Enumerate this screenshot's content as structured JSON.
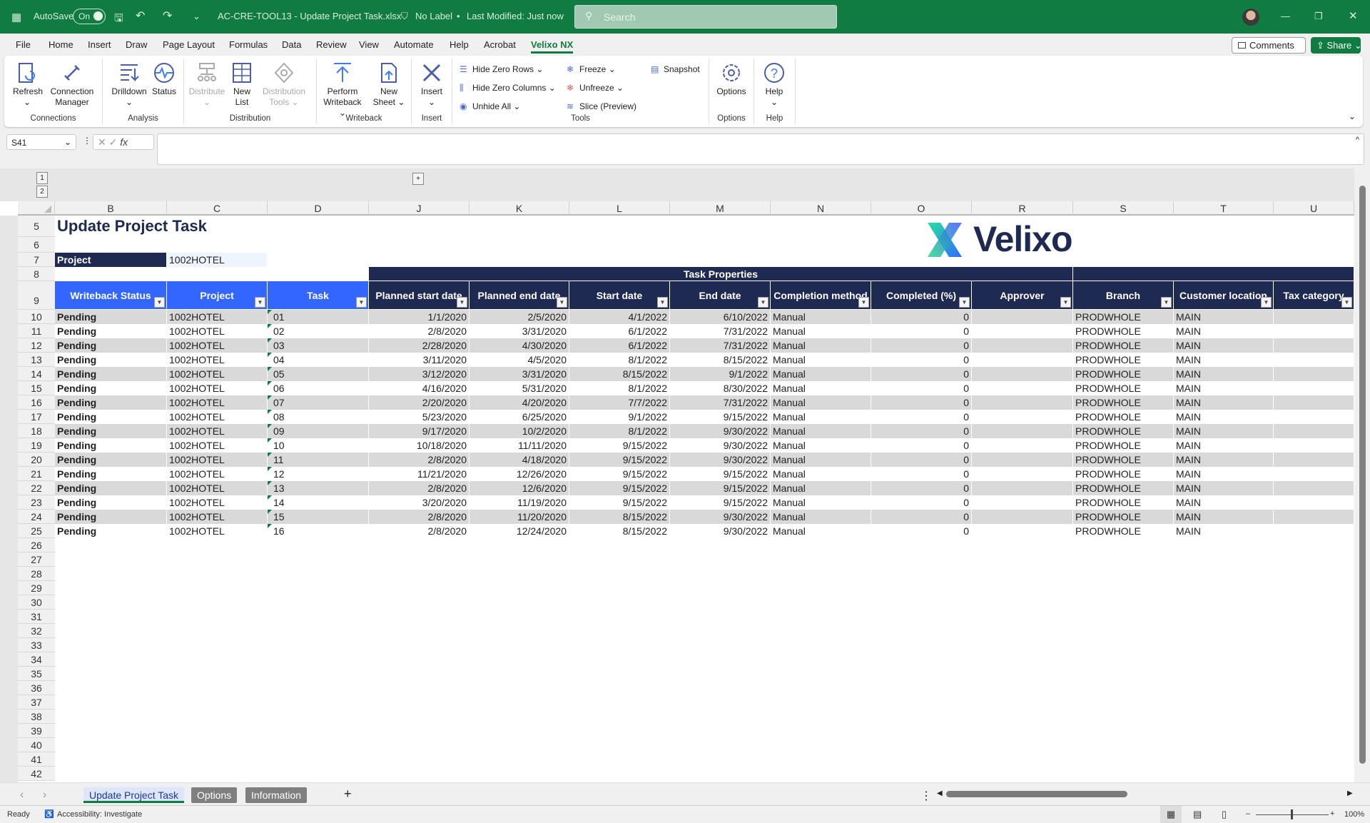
{
  "titlebar": {
    "autosave_label": "AutoSave",
    "autosave_state": "On",
    "filename": "AC-CRE-TOOL13 - Update Project Task.xlsx",
    "label_status": "No Label",
    "modified": "Last Modified: Just now",
    "search_placeholder": "Search"
  },
  "menu": {
    "tabs": [
      "File",
      "Home",
      "Insert",
      "Draw",
      "Page Layout",
      "Formulas",
      "Data",
      "Review",
      "View",
      "Automate",
      "Help",
      "Acrobat",
      "Velixo NX"
    ],
    "active": "Velixo NX",
    "comments": "Comments",
    "share": "Share"
  },
  "ribbon": {
    "groups": [
      "Connections",
      "Analysis",
      "Distribution",
      "Writeback",
      "Insert",
      "Tools",
      "Options",
      "Help"
    ],
    "refresh": "Refresh",
    "connection_manager": "Connection Manager",
    "drilldown": "Drilldown",
    "status": "Status",
    "distribute": "Distribute",
    "new_list": "New List",
    "distribution_tools": "Distribution Tools",
    "perform_writeback": "Perform Writeback",
    "new_sheet": "New Sheet",
    "insert": "Insert",
    "hide_zero_rows": "Hide Zero Rows",
    "hide_zero_columns": "Hide Zero Columns",
    "unhide_all": "Unhide All",
    "freeze": "Freeze",
    "unfreeze": "Unfreeze",
    "slice": "Slice (Preview)",
    "snapshot": "Snapshot",
    "options": "Options",
    "help": "Help"
  },
  "formula_bar": {
    "name_box": "S41",
    "value": ""
  },
  "sheet": {
    "column_letters": [
      "B",
      "C",
      "D",
      "J",
      "K",
      "L",
      "M",
      "N",
      "O",
      "R",
      "S",
      "T",
      "U"
    ],
    "row_numbers": [
      5,
      6,
      7,
      8,
      9,
      10,
      11,
      12,
      13,
      14,
      15,
      16,
      17,
      18,
      19,
      20,
      21,
      22,
      23,
      24,
      25,
      26,
      27,
      28,
      29,
      30,
      31,
      32,
      33,
      34,
      35,
      36,
      37,
      38,
      39,
      40,
      41,
      42
    ],
    "title": "Update Project Task",
    "project_label": "Project",
    "project_value": "1002HOTEL",
    "logo_text": "Velixo",
    "group_header": "Task Properties",
    "headers": [
      "Writeback Status",
      "Project",
      "Task",
      "Planned start date",
      "Planned end date",
      "Start date",
      "End date",
      "Completion method",
      "Completed (%)",
      "Approver",
      "Branch",
      "Customer location",
      "Tax category"
    ],
    "rows": [
      [
        "Pending",
        "1002HOTEL",
        "01",
        "1/1/2020",
        "2/5/2020",
        "4/1/2022",
        "6/10/2022",
        "Manual",
        "0",
        "",
        "PRODWHOLE",
        "MAIN",
        ""
      ],
      [
        "Pending",
        "1002HOTEL",
        "02",
        "2/8/2020",
        "3/31/2020",
        "6/1/2022",
        "7/31/2022",
        "Manual",
        "0",
        "",
        "PRODWHOLE",
        "MAIN",
        ""
      ],
      [
        "Pending",
        "1002HOTEL",
        "03",
        "2/28/2020",
        "4/30/2020",
        "6/1/2022",
        "7/31/2022",
        "Manual",
        "0",
        "",
        "PRODWHOLE",
        "MAIN",
        ""
      ],
      [
        "Pending",
        "1002HOTEL",
        "04",
        "3/11/2020",
        "4/5/2020",
        "8/1/2022",
        "8/15/2022",
        "Manual",
        "0",
        "",
        "PRODWHOLE",
        "MAIN",
        ""
      ],
      [
        "Pending",
        "1002HOTEL",
        "05",
        "3/12/2020",
        "3/31/2020",
        "8/15/2022",
        "9/1/2022",
        "Manual",
        "0",
        "",
        "PRODWHOLE",
        "MAIN",
        ""
      ],
      [
        "Pending",
        "1002HOTEL",
        "06",
        "4/16/2020",
        "5/31/2020",
        "8/1/2022",
        "8/30/2022",
        "Manual",
        "0",
        "",
        "PRODWHOLE",
        "MAIN",
        ""
      ],
      [
        "Pending",
        "1002HOTEL",
        "07",
        "2/20/2020",
        "4/20/2020",
        "7/7/2022",
        "7/31/2022",
        "Manual",
        "0",
        "",
        "PRODWHOLE",
        "MAIN",
        ""
      ],
      [
        "Pending",
        "1002HOTEL",
        "08",
        "5/23/2020",
        "6/25/2020",
        "9/1/2022",
        "9/15/2022",
        "Manual",
        "0",
        "",
        "PRODWHOLE",
        "MAIN",
        ""
      ],
      [
        "Pending",
        "1002HOTEL",
        "09",
        "9/17/2020",
        "10/2/2020",
        "8/1/2022",
        "9/30/2022",
        "Manual",
        "0",
        "",
        "PRODWHOLE",
        "MAIN",
        ""
      ],
      [
        "Pending",
        "1002HOTEL",
        "10",
        "10/18/2020",
        "11/11/2020",
        "9/15/2022",
        "9/30/2022",
        "Manual",
        "0",
        "",
        "PRODWHOLE",
        "MAIN",
        ""
      ],
      [
        "Pending",
        "1002HOTEL",
        "11",
        "2/8/2020",
        "4/18/2020",
        "9/15/2022",
        "9/30/2022",
        "Manual",
        "0",
        "",
        "PRODWHOLE",
        "MAIN",
        ""
      ],
      [
        "Pending",
        "1002HOTEL",
        "12",
        "11/21/2020",
        "12/26/2020",
        "9/15/2022",
        "9/15/2022",
        "Manual",
        "0",
        "",
        "PRODWHOLE",
        "MAIN",
        ""
      ],
      [
        "Pending",
        "1002HOTEL",
        "13",
        "2/8/2020",
        "12/6/2020",
        "9/15/2022",
        "9/15/2022",
        "Manual",
        "0",
        "",
        "PRODWHOLE",
        "MAIN",
        ""
      ],
      [
        "Pending",
        "1002HOTEL",
        "14",
        "3/20/2020",
        "11/19/2020",
        "9/15/2022",
        "9/15/2022",
        "Manual",
        "0",
        "",
        "PRODWHOLE",
        "MAIN",
        ""
      ],
      [
        "Pending",
        "1002HOTEL",
        "15",
        "2/8/2020",
        "11/20/2020",
        "8/15/2022",
        "9/30/2022",
        "Manual",
        "0",
        "",
        "PRODWHOLE",
        "MAIN",
        ""
      ],
      [
        "Pending",
        "1002HOTEL",
        "16",
        "2/8/2020",
        "12/24/2020",
        "8/15/2022",
        "9/30/2022",
        "Manual",
        "0",
        "",
        "PRODWHOLE",
        "MAIN",
        ""
      ]
    ]
  },
  "sheet_tabs": {
    "tabs": [
      "Update Project Task",
      "Options",
      "Information"
    ],
    "active": "Update Project Task"
  },
  "statusbar": {
    "ready": "Ready",
    "accessibility": "Accessibility: Investigate",
    "zoom": "100%"
  },
  "colors": {
    "excel_green": "#107c41",
    "header_blue": "#3366ff",
    "header_navy": "#1f2a52",
    "stripe": "#d9d9d9",
    "project_value_bg": "#eef5ff"
  }
}
